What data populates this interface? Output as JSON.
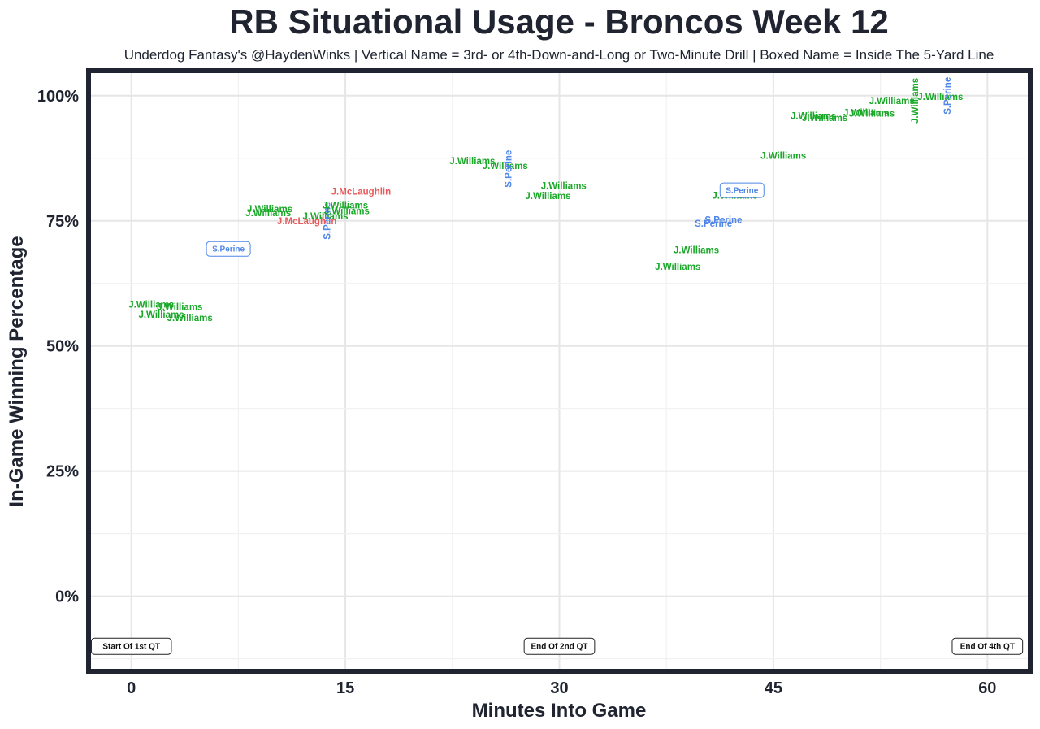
{
  "chart_data": {
    "type": "scatter",
    "title": "RB Situational Usage - Broncos Week 12",
    "subtitle": "Underdog Fantasy's @HaydenWinks | Vertical Name = 3rd- or 4th-Down-and-Long or Two-Minute Drill | Boxed Name = Inside The 5-Yard Line",
    "xlabel": "Minutes Into Game",
    "ylabel": "In-Game Winning Percentage",
    "xlim": [
      -3,
      63
    ],
    "ylim": [
      -15,
      105
    ],
    "x_ticks": [
      {
        "value": 0,
        "label": "0"
      },
      {
        "value": 15,
        "label": "15"
      },
      {
        "value": 30,
        "label": "30"
      },
      {
        "value": 45,
        "label": "45"
      },
      {
        "value": 60,
        "label": "60"
      }
    ],
    "y_ticks": [
      {
        "value": 0,
        "label": "0%"
      },
      {
        "value": 25,
        "label": "25%"
      },
      {
        "value": 50,
        "label": "50%"
      },
      {
        "value": 75,
        "label": "75%"
      },
      {
        "value": 100,
        "label": "100%"
      }
    ],
    "grid": true,
    "player_colors": {
      "J.Williams": "#1aa829",
      "S.Perine": "#4f86e8",
      "J.McLaughlin": "#e65a5a"
    },
    "points": [
      {
        "player": "J.Williams",
        "x": 1.4,
        "y": 58.3,
        "style": "normal"
      },
      {
        "player": "J.Williams",
        "x": 3.4,
        "y": 57.8,
        "style": "normal"
      },
      {
        "player": "J.Williams",
        "x": 2.1,
        "y": 56.3,
        "style": "normal"
      },
      {
        "player": "J.Williams",
        "x": 4.1,
        "y": 55.6,
        "style": "normal"
      },
      {
        "player": "S.Perine",
        "x": 6.8,
        "y": 69.4,
        "style": "boxed"
      },
      {
        "player": "J.Williams",
        "x": 9.7,
        "y": 77.4,
        "style": "normal"
      },
      {
        "player": "J.Williams",
        "x": 9.6,
        "y": 76.6,
        "style": "normal"
      },
      {
        "player": "J.McLaughlin",
        "x": 12.3,
        "y": 75.0,
        "style": "normal"
      },
      {
        "player": "J.Williams",
        "x": 13.6,
        "y": 75.9,
        "style": "normal"
      },
      {
        "player": "S.Perine",
        "x": 13.7,
        "y": 75.0,
        "style": "vertical"
      },
      {
        "player": "J.Williams",
        "x": 15.0,
        "y": 78.1,
        "style": "normal"
      },
      {
        "player": "J.Williams",
        "x": 15.1,
        "y": 77.0,
        "style": "normal"
      },
      {
        "player": "J.McLaughlin",
        "x": 16.1,
        "y": 80.9,
        "style": "normal"
      },
      {
        "player": "J.Williams",
        "x": 23.9,
        "y": 87.0,
        "style": "normal"
      },
      {
        "player": "J.Williams",
        "x": 26.2,
        "y": 86.0,
        "style": "normal"
      },
      {
        "player": "S.Perine",
        "x": 26.4,
        "y": 85.4,
        "style": "vertical"
      },
      {
        "player": "J.Williams",
        "x": 30.3,
        "y": 82.0,
        "style": "normal"
      },
      {
        "player": "J.Williams",
        "x": 29.2,
        "y": 80.0,
        "style": "normal"
      },
      {
        "player": "J.Williams",
        "x": 38.3,
        "y": 65.9,
        "style": "normal"
      },
      {
        "player": "J.Williams",
        "x": 39.6,
        "y": 69.2,
        "style": "normal"
      },
      {
        "player": "S.Perine",
        "x": 40.8,
        "y": 74.5,
        "style": "normal"
      },
      {
        "player": "S.Perine",
        "x": 41.5,
        "y": 75.2,
        "style": "normal"
      },
      {
        "player": "J.Williams",
        "x": 42.3,
        "y": 80.1,
        "style": "normal"
      },
      {
        "player": "S.Perine",
        "x": 42.8,
        "y": 81.1,
        "style": "boxed"
      },
      {
        "player": "J.Williams",
        "x": 45.7,
        "y": 88.0,
        "style": "normal"
      },
      {
        "player": "J.Williams",
        "x": 47.8,
        "y": 96.0,
        "style": "normal"
      },
      {
        "player": "J.Williams",
        "x": 48.6,
        "y": 95.6,
        "style": "normal"
      },
      {
        "player": "J.Williams",
        "x": 51.5,
        "y": 96.6,
        "style": "normal"
      },
      {
        "player": "J.Williams",
        "x": 51.9,
        "y": 96.5,
        "style": "normal"
      },
      {
        "player": "J.Williams",
        "x": 53.3,
        "y": 99.0,
        "style": "normal"
      },
      {
        "player": "J.Williams",
        "x": 54.9,
        "y": 99.0,
        "style": "vertical"
      },
      {
        "player": "J.Williams",
        "x": 56.7,
        "y": 99.8,
        "style": "normal"
      },
      {
        "player": "S.Perine",
        "x": 57.2,
        "y": 100.0,
        "style": "vertical"
      }
    ],
    "quarter_markers": [
      {
        "label": "Start Of 1st QT",
        "x": 0,
        "y": -10
      },
      {
        "label": "End Of 2nd QT",
        "x": 30,
        "y": -10
      },
      {
        "label": "End Of 4th QT",
        "x": 60,
        "y": -10
      }
    ]
  },
  "colors": {
    "text": "#1f2430",
    "frame": "#1f2430",
    "grid_major": "#e6e6e6",
    "grid_minor": "#f1f1f1",
    "box_stroke_perine": "#4f86e8",
    "qt_box_stroke": "#222222"
  }
}
